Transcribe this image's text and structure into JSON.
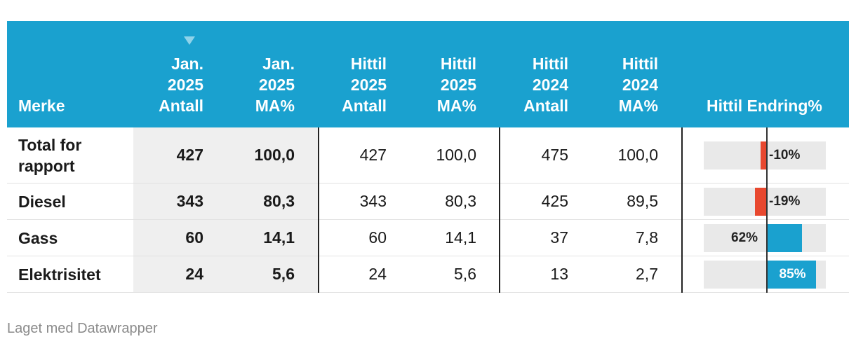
{
  "chart_data": {
    "type": "table",
    "columns": [
      {
        "key": "merke",
        "label": "Merke"
      },
      {
        "key": "jan_antall",
        "label": "Jan.\n2025\nAntall",
        "sorted": true
      },
      {
        "key": "jan_ma",
        "label": "Jan.\n2025\nMA%"
      },
      {
        "key": "ytd25_antall",
        "label": "Hittil\n2025\nAntall"
      },
      {
        "key": "ytd25_ma",
        "label": "Hittil\n2025\nMA%"
      },
      {
        "key": "ytd24_antall",
        "label": "Hittil\n2024\nAntall"
      },
      {
        "key": "ytd24_ma",
        "label": "Hittil\n2024\nMA%"
      },
      {
        "key": "endring",
        "label": "Hittil Endring%"
      }
    ],
    "rows": [
      {
        "merke": "Total for\nrapport",
        "jan_antall": "427",
        "jan_ma": "100,0",
        "ytd25_antall": "427",
        "ytd25_ma": "100,0",
        "ytd24_antall": "475",
        "ytd24_ma": "100,0",
        "endring": -10,
        "endring_label": "-10%"
      },
      {
        "merke": "Diesel",
        "jan_antall": "343",
        "jan_ma": "80,3",
        "ytd25_antall": "343",
        "ytd25_ma": "80,3",
        "ytd24_antall": "425",
        "ytd24_ma": "89,5",
        "endring": -19,
        "endring_label": "-19%"
      },
      {
        "merke": "Gass",
        "jan_antall": "60",
        "jan_ma": "14,1",
        "ytd25_antall": "60",
        "ytd25_ma": "14,1",
        "ytd24_antall": "37",
        "ytd24_ma": "7,8",
        "endring": 62,
        "endring_label": "62%"
      },
      {
        "merke": "Elektrisitet",
        "jan_antall": "24",
        "jan_ma": "5,6",
        "ytd25_antall": "24",
        "ytd25_ma": "5,6",
        "ytd24_antall": "13",
        "ytd24_ma": "2,7",
        "endring": 85,
        "endring_label": "85%"
      }
    ],
    "bar_colors": {
      "negative": "#e8482f",
      "positive": "#1aa1cf"
    }
  },
  "colors": {
    "header_bg": "#1aa1cf"
  },
  "footer": "Laget med Datawrapper"
}
